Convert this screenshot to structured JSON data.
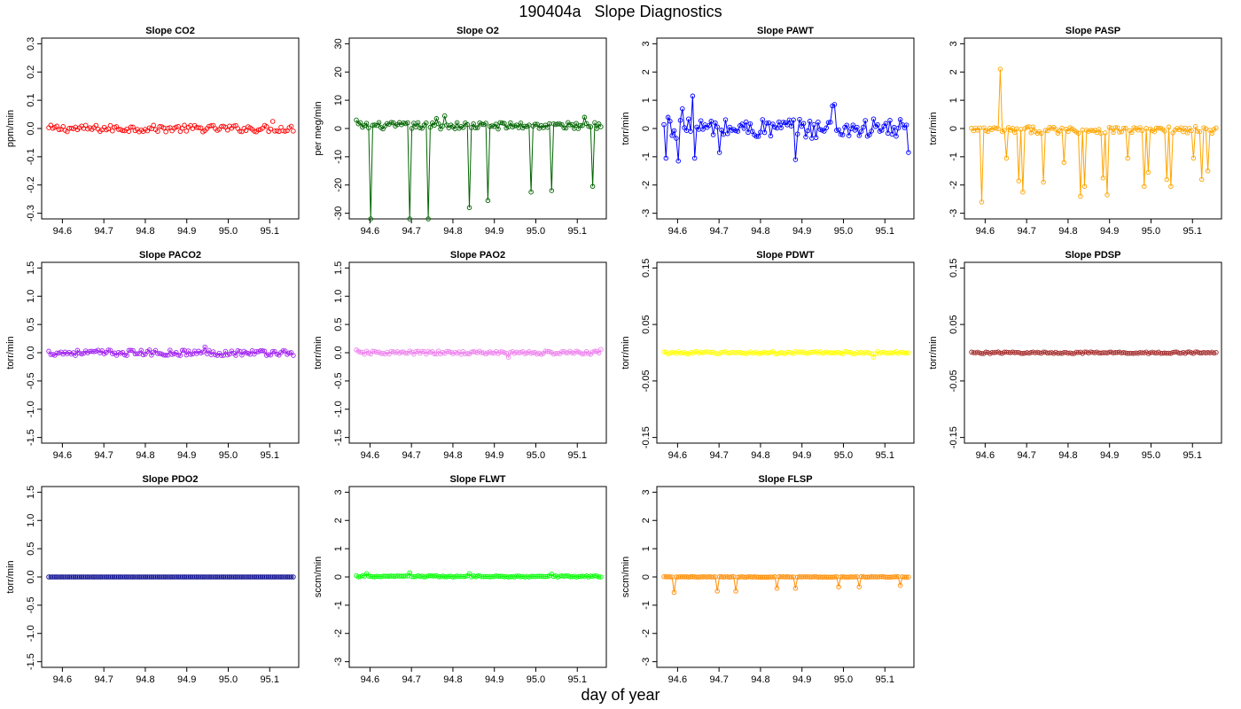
{
  "title": "190404a   Slope Diagnostics",
  "xlabel": "day of year",
  "chart_data": [
    {
      "type": "line",
      "title": "Slope CO2",
      "ylabel": "ppm/min",
      "color": "#ff0000",
      "points_only": true,
      "ylim": [
        -0.32,
        0.32
      ],
      "yticks": [
        "-0.3",
        "-0.2",
        "-0.1",
        "0.0",
        "0.1",
        "0.2",
        "0.3"
      ],
      "ytick_values": [
        -0.3,
        -0.2,
        -0.1,
        0.0,
        0.1,
        0.2,
        0.3
      ],
      "xticks": [
        "94.6",
        "94.7",
        "94.8",
        "94.9",
        "95.0",
        "95.1"
      ],
      "xlim": [
        94.55,
        95.17
      ],
      "baseline": 0.0,
      "noise": 0.012,
      "events": [
        {
          "x": 95.106,
          "y": 0.025
        }
      ]
    },
    {
      "type": "line",
      "title": "Slope O2",
      "ylabel": "per meg/min",
      "color": "#006400",
      "points_only": false,
      "ylim": [
        -32,
        32
      ],
      "yticks": [
        "-30",
        "-20",
        "-10",
        "0",
        "10",
        "20",
        "30"
      ],
      "ytick_values": [
        -30,
        -20,
        -10,
        0,
        10,
        20,
        30
      ],
      "xticks": [
        "94.6",
        "94.7",
        "94.8",
        "94.9",
        "95.0",
        "95.1"
      ],
      "xlim": [
        94.55,
        95.17
      ],
      "baseline": 1.0,
      "noise": 1.2,
      "events": [
        {
          "x": 94.567,
          "y": 3.0
        },
        {
          "x": 94.604,
          "y": -32
        },
        {
          "x": 94.696,
          "y": -32
        },
        {
          "x": 94.743,
          "y": -32
        },
        {
          "x": 94.839,
          "y": -28
        },
        {
          "x": 94.885,
          "y": -25.5
        },
        {
          "x": 94.99,
          "y": -22.5
        },
        {
          "x": 95.036,
          "y": -22
        },
        {
          "x": 95.136,
          "y": -20.5
        },
        {
          "x": 94.759,
          "y": 3.5
        },
        {
          "x": 94.781,
          "y": 4.5
        },
        {
          "x": 95.115,
          "y": 4.0
        }
      ]
    },
    {
      "type": "line",
      "title": "Slope PAWT",
      "ylabel": "torr/min",
      "color": "#0000ff",
      "points_only": false,
      "ylim": [
        -3.2,
        3.2
      ],
      "yticks": [
        "-3",
        "-2",
        "-1",
        "0",
        "1",
        "2",
        "3"
      ],
      "ytick_values": [
        -3,
        -2,
        -1,
        0,
        1,
        2,
        3
      ],
      "xticks": [
        "94.6",
        "94.7",
        "94.8",
        "94.9",
        "95.0",
        "95.1"
      ],
      "xlim": [
        94.55,
        95.17
      ],
      "baseline": 0.0,
      "noise": 0.35,
      "events": [
        {
          "x": 94.571,
          "y": -1.05
        },
        {
          "x": 94.575,
          "y": 0.4
        },
        {
          "x": 94.603,
          "y": -1.15
        },
        {
          "x": 94.611,
          "y": 0.7
        },
        {
          "x": 94.638,
          "y": 1.15
        },
        {
          "x": 94.642,
          "y": -1.05
        },
        {
          "x": 94.703,
          "y": -0.85
        },
        {
          "x": 94.885,
          "y": -1.1
        },
        {
          "x": 94.975,
          "y": 0.8
        },
        {
          "x": 94.98,
          "y": 0.85
        },
        {
          "x": 95.157,
          "y": -0.85
        }
      ]
    },
    {
      "type": "line",
      "title": "Slope PASP",
      "ylabel": "torr/min",
      "color": "#ffa500",
      "points_only": false,
      "ylim": [
        -3.2,
        3.2
      ],
      "yticks": [
        "-3",
        "-2",
        "-1",
        "0",
        "1",
        "2",
        "3"
      ],
      "ytick_values": [
        -3,
        -2,
        -1,
        0,
        1,
        2,
        3
      ],
      "xticks": [
        "94.6",
        "94.7",
        "94.8",
        "94.9",
        "95.0",
        "95.1"
      ],
      "xlim": [
        94.55,
        95.17
      ],
      "baseline": -0.05,
      "noise": 0.12,
      "events": [
        {
          "x": 94.59,
          "y": -2.6
        },
        {
          "x": 94.638,
          "y": 2.1
        },
        {
          "x": 94.65,
          "y": -1.05
        },
        {
          "x": 94.681,
          "y": -1.85
        },
        {
          "x": 94.693,
          "y": -2.25
        },
        {
          "x": 94.741,
          "y": -1.9
        },
        {
          "x": 94.792,
          "y": -1.2
        },
        {
          "x": 94.829,
          "y": -2.4
        },
        {
          "x": 94.841,
          "y": -2.05
        },
        {
          "x": 94.883,
          "y": -1.75
        },
        {
          "x": 94.895,
          "y": -2.35
        },
        {
          "x": 94.942,
          "y": -1.05
        },
        {
          "x": 94.981,
          "y": -2.05
        },
        {
          "x": 94.993,
          "y": -1.55
        },
        {
          "x": 95.039,
          "y": -1.8
        },
        {
          "x": 95.05,
          "y": -2.05
        },
        {
          "x": 95.1,
          "y": -1.05
        },
        {
          "x": 95.12,
          "y": -1.8
        },
        {
          "x": 95.135,
          "y": -1.5
        }
      ]
    },
    {
      "type": "line",
      "title": "Slope PACO2",
      "ylabel": "torr/min",
      "color": "#a020f0",
      "points_only": false,
      "ylim": [
        -1.6,
        1.6
      ],
      "yticks": [
        "-1.5",
        "-1.0",
        "-0.5",
        "0.0",
        "0.5",
        "1.0",
        "1.5"
      ],
      "ytick_values": [
        -1.5,
        -1.0,
        -0.5,
        0.0,
        0.5,
        1.0,
        1.5
      ],
      "xticks": [
        "94.6",
        "94.7",
        "94.8",
        "94.9",
        "95.0",
        "95.1"
      ],
      "xlim": [
        94.55,
        95.17
      ],
      "baseline": 0.0,
      "noise": 0.05,
      "events": [
        {
          "x": 94.944,
          "y": 0.1
        }
      ]
    },
    {
      "type": "line",
      "title": "Slope PAO2",
      "ylabel": "torr/min",
      "color": "#ee82ee",
      "points_only": false,
      "ylim": [
        -1.6,
        1.6
      ],
      "yticks": [
        "-1.5",
        "-1.0",
        "-0.5",
        "0.0",
        "0.5",
        "1.0",
        "1.5"
      ],
      "ytick_values": [
        -1.5,
        -1.0,
        -0.5,
        0.0,
        0.5,
        1.0,
        1.5
      ],
      "xticks": [
        "94.6",
        "94.7",
        "94.8",
        "94.9",
        "95.0",
        "95.1"
      ],
      "xlim": [
        94.55,
        95.17
      ],
      "baseline": 0.0,
      "noise": 0.03,
      "events": [
        {
          "x": 94.567,
          "y": 0.05
        },
        {
          "x": 94.932,
          "y": -0.08
        },
        {
          "x": 95.157,
          "y": 0.06
        }
      ]
    },
    {
      "type": "line",
      "title": "Slope PDWT",
      "ylabel": "torr/min",
      "color": "#ffff00",
      "points_only": false,
      "ylim": [
        -0.16,
        0.16
      ],
      "yticks": [
        "-0.15",
        "-0.05",
        "0.05",
        "0.15"
      ],
      "ytick_values": [
        -0.15,
        -0.05,
        0.05,
        0.15
      ],
      "xticks": [
        "94.6",
        "94.7",
        "94.8",
        "94.9",
        "95.0",
        "95.1"
      ],
      "xlim": [
        94.55,
        95.17
      ],
      "baseline": 0.0,
      "noise": 0.002,
      "events": [
        {
          "x": 95.072,
          "y": -0.008
        }
      ]
    },
    {
      "type": "line",
      "title": "Slope PDSP",
      "ylabel": "torr/min",
      "color": "#a52a2a",
      "points_only": false,
      "ylim": [
        -0.16,
        0.16
      ],
      "yticks": [
        "-0.15",
        "-0.05",
        "0.05",
        "0.15"
      ],
      "ytick_values": [
        -0.15,
        -0.05,
        0.05,
        0.15
      ],
      "xticks": [
        "94.6",
        "94.7",
        "94.8",
        "94.9",
        "95.0",
        "95.1"
      ],
      "xlim": [
        94.55,
        95.17
      ],
      "baseline": 0.0,
      "noise": 0.0015,
      "events": []
    },
    {
      "type": "line",
      "title": "Slope PDO2",
      "ylabel": "torr/min",
      "color": "#00008b",
      "points_only": false,
      "ylim": [
        -1.6,
        1.6
      ],
      "yticks": [
        "-1.5",
        "-1.0",
        "-0.5",
        "0.0",
        "0.5",
        "1.0",
        "1.5"
      ],
      "ytick_values": [
        -1.5,
        -1.0,
        -0.5,
        0.0,
        0.5,
        1.0,
        1.5
      ],
      "xticks": [
        "94.6",
        "94.7",
        "94.8",
        "94.9",
        "95.0",
        "95.1"
      ],
      "xlim": [
        94.55,
        95.17
      ],
      "baseline": 0.0,
      "noise": 0.0,
      "events": []
    },
    {
      "type": "line",
      "title": "Slope FLWT",
      "ylabel": "sccm/min",
      "color": "#00ff00",
      "points_only": false,
      "ylim": [
        -3.2,
        3.2
      ],
      "yticks": [
        "-3",
        "-2",
        "-1",
        "0",
        "1",
        "2",
        "3"
      ],
      "ytick_values": [
        -3,
        -2,
        -1,
        0,
        1,
        2,
        3
      ],
      "xticks": [
        "94.6",
        "94.7",
        "94.8",
        "94.9",
        "95.0",
        "95.1"
      ],
      "xlim": [
        94.55,
        95.17
      ],
      "baseline": 0.02,
      "noise": 0.025,
      "events": [
        {
          "x": 94.59,
          "y": 0.12
        },
        {
          "x": 94.695,
          "y": 0.15
        },
        {
          "x": 94.839,
          "y": 0.12
        },
        {
          "x": 95.036,
          "y": 0.1
        }
      ]
    },
    {
      "type": "line",
      "title": "Slope FLSP",
      "ylabel": "sccm/min",
      "color": "#ff8c00",
      "points_only": false,
      "ylim": [
        -3.2,
        3.2
      ],
      "yticks": [
        "-3",
        "-2",
        "-1",
        "0",
        "1",
        "2",
        "3"
      ],
      "ytick_values": [
        -3,
        -2,
        -1,
        0,
        1,
        2,
        3
      ],
      "xticks": [
        "94.6",
        "94.7",
        "94.8",
        "94.9",
        "95.0",
        "95.1"
      ],
      "xlim": [
        94.55,
        95.17
      ],
      "baseline": 0.0,
      "noise": 0.01,
      "events": [
        {
          "x": 94.59,
          "y": -0.55
        },
        {
          "x": 94.696,
          "y": -0.5
        },
        {
          "x": 94.743,
          "y": -0.5
        },
        {
          "x": 94.839,
          "y": -0.4
        },
        {
          "x": 94.885,
          "y": -0.4
        },
        {
          "x": 94.99,
          "y": -0.35
        },
        {
          "x": 95.036,
          "y": -0.35
        },
        {
          "x": 95.136,
          "y": -0.3
        }
      ]
    }
  ]
}
